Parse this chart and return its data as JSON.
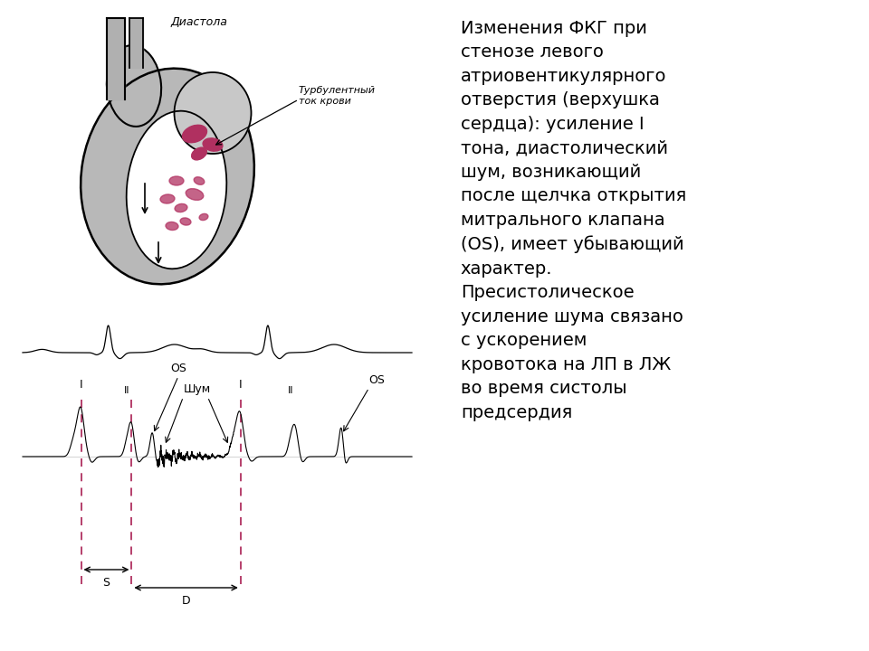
{
  "bg_color": "#ffffff",
  "right_bg": "#cccccc",
  "title_diastola": "Диастола",
  "title_turbulent": "Турбулентный\nток крови",
  "right_text": "Изменения ФКГ при\nстенозе левого\nатриовентикулярного\nотверстия (верхушка\nсердца): усиление I\nтона, диастолический\nшум, возникающий\nпосле щелчка открытия\nмитрального клапана\n(OS), имеет убывающий\nхарактер.\nПресистолическое\nусиление шума связано\nс ускорением\nкровотока на ЛП в ЛЖ\nво время систолы\nпредсердия",
  "label_Shum": "Шум",
  "label_S": "S",
  "label_D": "D",
  "pink_color": "#b03060",
  "text_color": "#000000",
  "beat1_I": 0.15,
  "beat1_II": 0.28,
  "beat1_OS": 0.335,
  "beat2_I": 0.56,
  "beat2_II": 0.7,
  "beat2_OS": 0.82,
  "ecg_beat1": 0.22,
  "ecg_beat2": 0.63
}
